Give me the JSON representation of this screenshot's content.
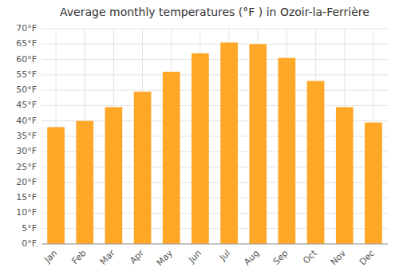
{
  "chart_data": {
    "type": "bar",
    "title": "Average monthly temperatures (°F ) in Ozoir-la-Ferrière",
    "categories": [
      "Jan",
      "Feb",
      "Mar",
      "Apr",
      "May",
      "Jun",
      "Jul",
      "Aug",
      "Sep",
      "Oct",
      "Nov",
      "Dec"
    ],
    "values": [
      38,
      40,
      44.5,
      49.5,
      56,
      62,
      65.5,
      65,
      60.5,
      53,
      44.5,
      39.5
    ],
    "color": "#FFA726",
    "ylim": [
      0,
      70
    ],
    "yticks": [
      {
        "value": 0,
        "label": "0°F"
      },
      {
        "value": 5,
        "label": "5°F"
      },
      {
        "value": 10,
        "label": "10°F"
      },
      {
        "value": 15,
        "label": "15°F"
      },
      {
        "value": 20,
        "label": "20°F"
      },
      {
        "value": 25,
        "label": "25°F"
      },
      {
        "value": 30,
        "label": "30°F"
      },
      {
        "value": 35,
        "label": "35°F"
      },
      {
        "value": 40,
        "label": "40°F"
      },
      {
        "value": 45,
        "label": "45°F"
      },
      {
        "value": 50,
        "label": "50°F"
      },
      {
        "value": 55,
        "label": "55°F"
      },
      {
        "value": 60,
        "label": "60°F"
      },
      {
        "value": 65,
        "label": "65°F"
      },
      {
        "value": 70,
        "label": "70°F"
      }
    ],
    "grid": true
  }
}
